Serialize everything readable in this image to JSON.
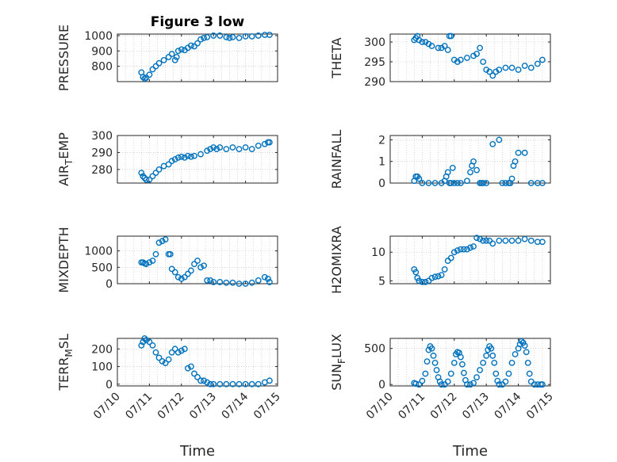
{
  "figure": {
    "title": "Figure 3 low"
  },
  "colors": {
    "marker": "#0072BD",
    "axis": "#262626",
    "grid": "#bdbdbd"
  },
  "chart_data": [
    {
      "type": "scatter",
      "ylabel": "PRESSURE",
      "ylim": [
        700,
        1010
      ],
      "yticks": [
        800,
        900,
        1000
      ],
      "xlim": [
        0,
        5
      ],
      "xticks": [
        0,
        1,
        2,
        3,
        4,
        5
      ],
      "xticklabels": [
        "07/10",
        "07/11",
        "07/12",
        "07/13",
        "07/14",
        "07/15"
      ],
      "title": "Figure 3 low",
      "grid": true,
      "x": [
        0.75,
        0.8,
        0.85,
        0.9,
        1.0,
        1.1,
        1.2,
        1.3,
        1.45,
        1.6,
        1.7,
        1.8,
        1.85,
        1.9,
        2.0,
        2.1,
        2.2,
        2.3,
        2.4,
        2.5,
        2.6,
        2.7,
        2.8,
        3.0,
        3.2,
        3.4,
        3.5,
        3.6,
        3.8,
        4.0,
        4.2,
        4.4,
        4.6,
        4.75
      ],
      "y": [
        760,
        730,
        720,
        725,
        745,
        780,
        800,
        820,
        840,
        860,
        880,
        840,
        860,
        900,
        910,
        905,
        920,
        935,
        930,
        950,
        975,
        985,
        990,
        1000,
        1000,
        990,
        985,
        990,
        985,
        995,
        995,
        1000,
        1005,
        1005
      ]
    },
    {
      "type": "scatter",
      "ylabel": "THETA",
      "ylim": [
        290,
        302
      ],
      "yticks": [
        290,
        295,
        300
      ],
      "xlim": [
        0,
        5
      ],
      "xticks": [
        0,
        1,
        2,
        3,
        4,
        5
      ],
      "xticklabels": [
        "07/10",
        "07/11",
        "07/12",
        "07/13",
        "07/14",
        "07/15"
      ],
      "grid": true,
      "x": [
        0.75,
        0.8,
        0.85,
        0.9,
        1.0,
        1.1,
        1.2,
        1.3,
        1.5,
        1.6,
        1.7,
        1.8,
        1.85,
        1.9,
        2.0,
        2.1,
        2.2,
        2.4,
        2.6,
        2.7,
        2.8,
        2.9,
        3.0,
        3.1,
        3.2,
        3.3,
        3.4,
        3.6,
        3.8,
        4.0,
        4.2,
        4.4,
        4.6,
        4.75
      ],
      "y": [
        300.5,
        301,
        301.5,
        300.5,
        300,
        300,
        299.5,
        299,
        298.5,
        298.5,
        299,
        298,
        301.5,
        301.5,
        295.5,
        295,
        295.5,
        296,
        296.5,
        297,
        298.5,
        295,
        293,
        292.5,
        291.5,
        292.5,
        293,
        293.5,
        293.5,
        293,
        294,
        293.5,
        294.5,
        295.5
      ]
    },
    {
      "type": "scatter",
      "ylabel": "AIR_TEMP",
      "ylim": [
        272,
        300
      ],
      "yticks": [
        280,
        290,
        300
      ],
      "xlim": [
        0,
        5
      ],
      "xticks": [
        0,
        1,
        2,
        3,
        4,
        5
      ],
      "xticklabels": [
        "07/10",
        "07/11",
        "07/12",
        "07/13",
        "07/14",
        "07/15"
      ],
      "grid": true,
      "x": [
        0.75,
        0.8,
        0.85,
        0.9,
        1.0,
        1.1,
        1.2,
        1.3,
        1.45,
        1.6,
        1.7,
        1.8,
        1.9,
        2.0,
        2.1,
        2.2,
        2.3,
        2.4,
        2.6,
        2.8,
        2.9,
        3.0,
        3.1,
        3.2,
        3.4,
        3.6,
        3.8,
        4.0,
        4.2,
        4.4,
        4.6,
        4.7,
        4.75
      ],
      "y": [
        278,
        276,
        275,
        274,
        274,
        276,
        278,
        280,
        282,
        283,
        285,
        286,
        287,
        287.5,
        287,
        288,
        287.5,
        288,
        289,
        291,
        292,
        293,
        292,
        293,
        292,
        293,
        292,
        293,
        292,
        294,
        295,
        296,
        296
      ]
    },
    {
      "type": "scatter",
      "ylabel": "RAINFALL",
      "ylim": [
        0,
        2.2
      ],
      "yticks": [
        0,
        1,
        2
      ],
      "xlim": [
        0,
        5
      ],
      "xticks": [
        0,
        1,
        2,
        3,
        4,
        5
      ],
      "xticklabels": [
        "07/10",
        "07/11",
        "07/12",
        "07/13",
        "07/14",
        "07/15"
      ],
      "grid": true,
      "x": [
        0.75,
        0.8,
        0.85,
        0.9,
        1.0,
        1.2,
        1.4,
        1.6,
        1.7,
        1.75,
        1.8,
        1.85,
        1.9,
        1.95,
        2.0,
        2.1,
        2.2,
        2.4,
        2.5,
        2.55,
        2.6,
        2.7,
        2.8,
        2.85,
        2.9,
        3.0,
        3.2,
        3.4,
        3.5,
        3.6,
        3.7,
        3.75,
        3.8,
        3.85,
        3.9,
        4.0,
        4.2,
        4.4,
        4.6,
        4.75
      ],
      "y": [
        0.1,
        0.3,
        0.3,
        0.2,
        0,
        0,
        0,
        0,
        0.1,
        0.3,
        0.5,
        0,
        0,
        0.7,
        0,
        0,
        0,
        0.1,
        0.5,
        0.8,
        1.0,
        0.6,
        0,
        0,
        0,
        0,
        1.8,
        2.0,
        0,
        0,
        0,
        0,
        0.2,
        0.8,
        1.0,
        1.4,
        1.4,
        0,
        0,
        0
      ]
    },
    {
      "type": "scatter",
      "ylabel": "MIXDEPTH",
      "ylim": [
        0,
        1450
      ],
      "yticks": [
        0,
        500,
        1000
      ],
      "xlim": [
        0,
        5
      ],
      "xticks": [
        0,
        1,
        2,
        3,
        4,
        5
      ],
      "xticklabels": [
        "07/10",
        "07/11",
        "07/12",
        "07/13",
        "07/14",
        "07/15"
      ],
      "grid": true,
      "x": [
        0.75,
        0.8,
        0.85,
        0.9,
        1.0,
        1.1,
        1.2,
        1.3,
        1.4,
        1.5,
        1.6,
        1.65,
        1.7,
        1.8,
        1.9,
        2.0,
        2.1,
        2.2,
        2.3,
        2.4,
        2.5,
        2.6,
        2.7,
        2.8,
        2.9,
        3.0,
        3.2,
        3.4,
        3.6,
        3.8,
        4.0,
        4.2,
        4.4,
        4.6,
        4.7,
        4.75
      ],
      "y": [
        650,
        650,
        620,
        600,
        650,
        700,
        900,
        1250,
        1300,
        1350,
        900,
        900,
        450,
        350,
        200,
        150,
        200,
        300,
        400,
        600,
        700,
        500,
        550,
        100,
        100,
        50,
        50,
        30,
        30,
        0,
        0,
        30,
        100,
        200,
        150,
        50
      ]
    },
    {
      "type": "scatter",
      "ylabel": "H2OMIXRA",
      "ylim": [
        4.5,
        12.8
      ],
      "yticks": [
        5,
        10
      ],
      "xlim": [
        0,
        5
      ],
      "xticks": [
        0,
        1,
        2,
        3,
        4,
        5
      ],
      "xticklabels": [
        "07/10",
        "07/11",
        "07/12",
        "07/13",
        "07/14",
        "07/15"
      ],
      "grid": true,
      "x": [
        0.75,
        0.8,
        0.85,
        0.9,
        1.0,
        1.1,
        1.2,
        1.3,
        1.4,
        1.5,
        1.6,
        1.7,
        1.8,
        1.9,
        2.0,
        2.1,
        2.2,
        2.3,
        2.4,
        2.5,
        2.6,
        2.7,
        2.8,
        2.9,
        3.0,
        3.1,
        3.2,
        3.4,
        3.6,
        3.8,
        4.0,
        4.2,
        4.4,
        4.6,
        4.75
      ],
      "y": [
        7,
        6.5,
        5.5,
        5.0,
        4.8,
        4.8,
        5.0,
        5.5,
        5.7,
        5.8,
        6.0,
        7.0,
        8.5,
        9.0,
        10,
        10.3,
        10.5,
        10.5,
        10.5,
        10.8,
        11,
        12.5,
        12.3,
        12,
        12,
        12,
        11.5,
        12,
        12,
        12,
        12,
        12.3,
        12.0,
        11.8,
        11.8
      ]
    },
    {
      "type": "scatter",
      "ylabel": "TERR_MSL",
      "ylim": [
        -10,
        260
      ],
      "yticks": [
        0,
        100,
        200
      ],
      "xlim": [
        0,
        5
      ],
      "xticks": [
        0,
        1,
        2,
        3,
        4,
        5
      ],
      "xticklabels": [
        "07/10",
        "07/11",
        "07/12",
        "07/13",
        "07/14",
        "07/15"
      ],
      "xlabel": "Time",
      "grid": true,
      "x": [
        0.75,
        0.8,
        0.85,
        0.9,
        1.0,
        1.1,
        1.2,
        1.3,
        1.4,
        1.5,
        1.6,
        1.7,
        1.8,
        1.9,
        2.0,
        2.1,
        2.2,
        2.3,
        2.4,
        2.5,
        2.6,
        2.7,
        2.8,
        2.9,
        3.0,
        3.2,
        3.4,
        3.6,
        3.8,
        4.0,
        4.2,
        4.4,
        4.6,
        4.75
      ],
      "y": [
        220,
        240,
        260,
        250,
        240,
        220,
        180,
        150,
        130,
        120,
        140,
        180,
        200,
        180,
        190,
        200,
        90,
        100,
        60,
        40,
        20,
        20,
        10,
        0,
        0,
        0,
        0,
        0,
        0,
        0,
        0,
        0,
        10,
        20
      ]
    },
    {
      "type": "scatter",
      "ylabel": "SUN_FLUX",
      "ylim": [
        -20,
        640
      ],
      "yticks": [
        0,
        500
      ],
      "xlim": [
        0,
        5
      ],
      "xticks": [
        0,
        1,
        2,
        3,
        4,
        5
      ],
      "xticklabels": [
        "07/10",
        "07/11",
        "07/12",
        "07/13",
        "07/14",
        "07/15"
      ],
      "xlabel": "Time",
      "grid": true,
      "x": [
        0.75,
        0.8,
        0.9,
        1.0,
        1.1,
        1.15,
        1.2,
        1.25,
        1.3,
        1.35,
        1.4,
        1.45,
        1.5,
        1.55,
        1.6,
        1.7,
        1.8,
        1.9,
        2.0,
        2.05,
        2.1,
        2.15,
        2.2,
        2.25,
        2.3,
        2.35,
        2.4,
        2.5,
        2.6,
        2.7,
        2.8,
        2.9,
        3.0,
        3.05,
        3.1,
        3.15,
        3.2,
        3.25,
        3.3,
        3.35,
        3.4,
        3.5,
        3.6,
        3.7,
        3.8,
        3.9,
        4.0,
        4.05,
        4.1,
        4.15,
        4.2,
        4.25,
        4.3,
        4.35,
        4.4,
        4.5,
        4.6,
        4.7,
        4.75
      ],
      "y": [
        20,
        10,
        0,
        50,
        150,
        320,
        480,
        530,
        500,
        400,
        300,
        200,
        100,
        40,
        0,
        0,
        40,
        150,
        300,
        420,
        450,
        440,
        380,
        280,
        160,
        60,
        0,
        0,
        20,
        100,
        200,
        300,
        400,
        480,
        530,
        500,
        400,
        300,
        150,
        50,
        0,
        0,
        40,
        150,
        300,
        420,
        500,
        560,
        600,
        580,
        540,
        450,
        300,
        150,
        40,
        0,
        0,
        0,
        0
      ]
    }
  ]
}
